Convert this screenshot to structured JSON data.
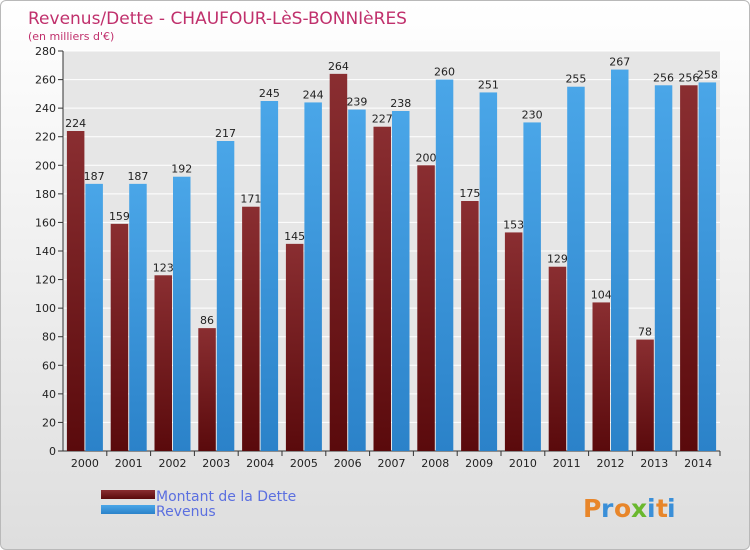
{
  "chart_data": {
    "type": "bar",
    "title": "Revenus/Dette - CHAUFOUR-LèS-BONNIèRES",
    "subtitle": "(en milliers d'€)",
    "categories": [
      "2000",
      "2001",
      "2002",
      "2003",
      "2004",
      "2005",
      "2006",
      "2007",
      "2008",
      "2009",
      "2010",
      "2011",
      "2012",
      "2013",
      "2014"
    ],
    "series": [
      {
        "name": "Montant de la Dette",
        "color": "#7a1f22",
        "values": [
          224,
          159,
          123,
          86,
          171,
          145,
          264,
          227,
          200,
          175,
          153,
          129,
          104,
          78,
          256
        ]
      },
      {
        "name": "Revenus",
        "color": "#3f9de0",
        "values": [
          187,
          187,
          192,
          217,
          245,
          244,
          239,
          238,
          260,
          251,
          230,
          255,
          267,
          256,
          258
        ]
      }
    ],
    "ylim": [
      0,
      280
    ],
    "yticks": [
      0,
      20,
      40,
      60,
      80,
      100,
      120,
      140,
      160,
      180,
      200,
      220,
      240,
      260,
      280
    ],
    "grid": true,
    "legend_position": "bottom-left"
  },
  "branding": {
    "logo_letters": [
      "P",
      "r",
      "o",
      "x",
      "i",
      "t",
      "i"
    ],
    "logo_colors": [
      "#e8862a",
      "#3a8fd8",
      "#e8862a",
      "#6ab82e",
      "#3a8fd8",
      "#e8862a",
      "#3a8fd8"
    ]
  }
}
